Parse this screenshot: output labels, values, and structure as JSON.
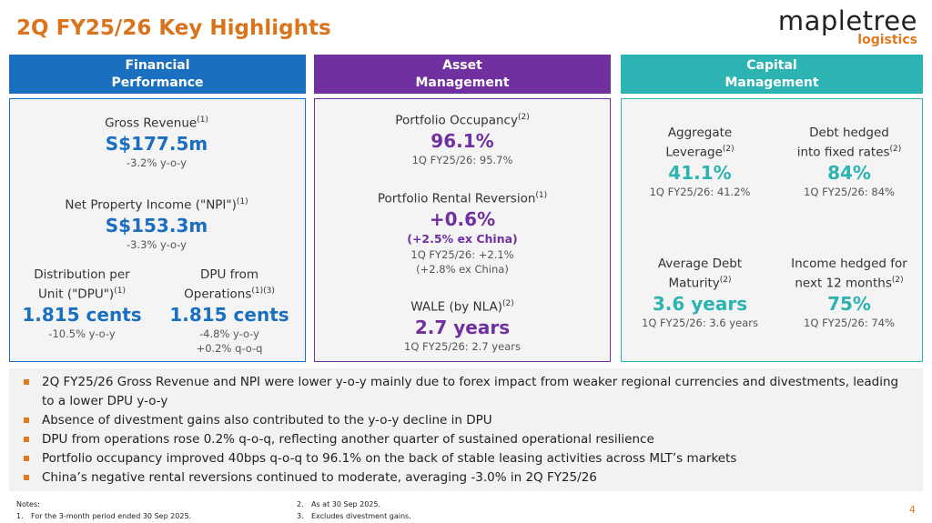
{
  "header": {
    "title": "2Q FY25/26 Key Highlights",
    "logo": {
      "brand": "mapletree",
      "sub": "logistics"
    }
  },
  "panels": [
    {
      "heading": [
        "Financial",
        "Performance"
      ],
      "items": [
        {
          "label": [
            "Gross Revenue"
          ],
          "note": "(1)",
          "value": "S$177.5m",
          "sub": [
            "-3.2% y-o-y"
          ]
        },
        {
          "label": [
            "Net Property Income (\"NPI\")"
          ],
          "note": "(1)",
          "value": "S$153.3m",
          "sub": [
            "-3.3% y-o-y"
          ]
        },
        {
          "label": [
            "Distribution per",
            "Unit (\"DPU\")"
          ],
          "note": "(1)",
          "value": "1.815 cents",
          "sub": [
            "-10.5% y-o-y"
          ]
        },
        {
          "label": [
            "DPU from",
            "Operations"
          ],
          "note": "(1)(3)",
          "value": "1.815 cents",
          "sub": [
            "-4.8% y-o-y",
            "+0.2% q-o-q"
          ]
        }
      ]
    },
    {
      "heading": [
        "Asset",
        "Management"
      ],
      "items": [
        {
          "label": [
            "Portfolio Occupancy"
          ],
          "note": "(2)",
          "value": "96.1%",
          "sub": [
            "1Q FY25/26: 95.7%"
          ]
        },
        {
          "label": [
            "Portfolio Rental Reversion"
          ],
          "note": "(1)",
          "value": "+0.6%",
          "value2": "(+2.5% ex China)",
          "sub": [
            "1Q FY25/26: +2.1%",
            "(+2.8% ex China)"
          ]
        },
        {
          "label": [
            "WALE (by NLA)"
          ],
          "note": "(2)",
          "value": "2.7 years",
          "sub": [
            "1Q FY25/26: 2.7 years"
          ]
        }
      ]
    },
    {
      "heading": [
        "Capital",
        "Management"
      ],
      "items": [
        {
          "label": [
            "Aggregate",
            "Leverage"
          ],
          "note": "(2)",
          "value": "41.1%",
          "sub": [
            "1Q FY25/26: 41.2%"
          ]
        },
        {
          "label": [
            "Debt hedged",
            "into fixed rates"
          ],
          "note": "(2)",
          "value": "84%",
          "sub": [
            "1Q FY25/26: 84%"
          ]
        },
        {
          "label": [
            "Average Debt",
            "Maturity"
          ],
          "note": "(2)",
          "value": "3.6 years",
          "sub": [
            "1Q FY25/26: 3.6 years"
          ]
        },
        {
          "label": [
            "Income hedged for",
            "next 12 months"
          ],
          "note": "(2)",
          "value": "75%",
          "sub": [
            "1Q FY25/26: 74%"
          ]
        }
      ]
    }
  ],
  "bullets": [
    "2Q FY25/26 Gross Revenue and NPI were lower y-o-y mainly due to forex impact from weaker regional currencies and divestments, leading to a lower DPU y-o-y",
    "Absence of divestment gains also contributed to the y-o-y decline in DPU",
    "DPU from operations rose 0.2% q-o-q, reflecting another quarter of sustained operational resilience",
    "Portfolio occupancy improved 40bps q-o-q to 96.1% on the back of stable leasing activities across MLT’s markets",
    "China’s negative rental reversions continued to moderate, averaging -3.0% in 2Q FY25/26"
  ],
  "footer": {
    "notes_title": "Notes:",
    "notes": [
      {
        "num": "1.",
        "text": "For the 3-month period ended 30 Sep 2025."
      },
      {
        "num": "2.",
        "text": "As at 30 Sep 2025."
      },
      {
        "num": "3.",
        "text": "Excludes divestment gains."
      }
    ],
    "page": "4"
  }
}
